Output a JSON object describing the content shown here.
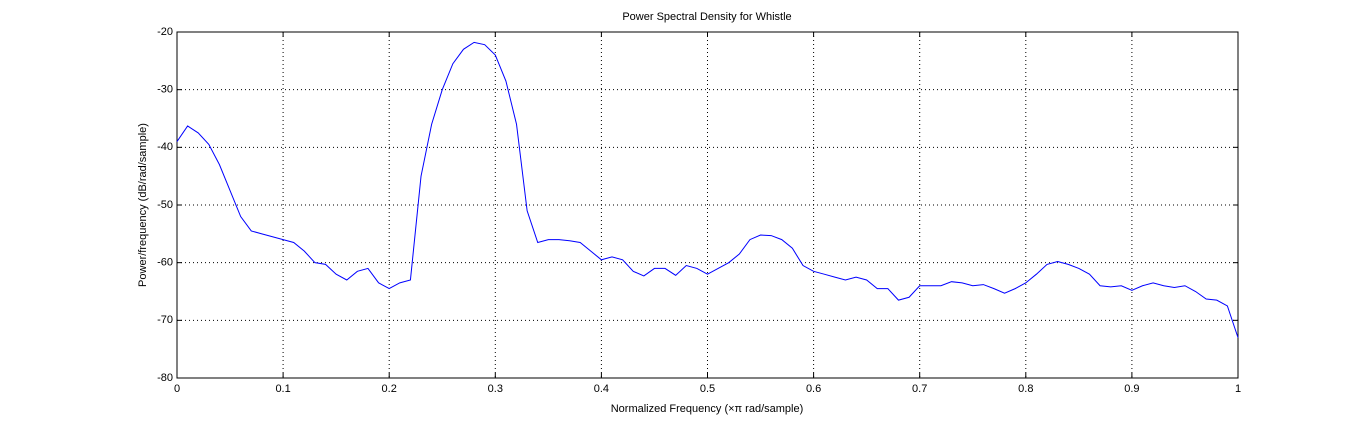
{
  "chart_data": {
    "type": "line",
    "title": "Power Spectral Density for Whistle",
    "xlabel": "Normalized Frequency  (×π rad/sample)",
    "ylabel": "Power/frequency (dB/rad/sample)",
    "x": [
      0,
      0.01,
      0.02,
      0.03,
      0.04,
      0.05,
      0.06,
      0.07,
      0.08,
      0.09,
      0.1,
      0.11,
      0.12,
      0.13,
      0.14,
      0.15,
      0.16,
      0.17,
      0.18,
      0.19,
      0.2,
      0.21,
      0.22,
      0.23,
      0.24,
      0.25,
      0.26,
      0.27,
      0.28,
      0.29,
      0.3,
      0.31,
      0.32,
      0.33,
      0.34,
      0.35,
      0.36,
      0.37,
      0.38,
      0.39,
      0.4,
      0.41,
      0.42,
      0.43,
      0.44,
      0.45,
      0.46,
      0.47,
      0.48,
      0.49,
      0.5,
      0.51,
      0.52,
      0.53,
      0.54,
      0.55,
      0.56,
      0.57,
      0.58,
      0.59,
      0.6,
      0.61,
      0.62,
      0.63,
      0.64,
      0.65,
      0.66,
      0.67,
      0.68,
      0.69,
      0.7,
      0.71,
      0.72,
      0.73,
      0.74,
      0.75,
      0.76,
      0.77,
      0.78,
      0.79,
      0.8,
      0.81,
      0.82,
      0.83,
      0.84,
      0.85,
      0.86,
      0.87,
      0.88,
      0.89,
      0.9,
      0.91,
      0.92,
      0.93,
      0.94,
      0.95,
      0.96,
      0.97,
      0.98,
      0.99,
      1
    ],
    "values": [
      -39,
      -36.3,
      -37.5,
      -39.5,
      -43,
      -47.5,
      -52,
      -54.5,
      -55,
      -55.5,
      -56,
      -56.5,
      -58,
      -60,
      -60.3,
      -62,
      -63,
      -61.5,
      -61,
      -63.5,
      -64.5,
      -63.5,
      -63,
      -45,
      -36,
      -30,
      -25.5,
      -23,
      -21.8,
      -22.2,
      -24,
      -28.5,
      -36,
      -51,
      -56.5,
      -56,
      -56,
      -56.2,
      -56.5,
      -58,
      -59.5,
      -59,
      -59.5,
      -61.5,
      -62.3,
      -61,
      -61,
      -62.2,
      -60.5,
      -61,
      -62,
      -61,
      -60,
      -58.5,
      -56,
      -55.2,
      -55.3,
      -56,
      -57.5,
      -60.5,
      -61.5,
      -62,
      -62.5,
      -63,
      -62.5,
      -63,
      -64.5,
      -64.5,
      -66.5,
      -66,
      -64,
      -64,
      -64,
      -63.3,
      -63.5,
      -64,
      -63.8,
      -64.5,
      -65.3,
      -64.5,
      -63.5,
      -62,
      -60.3,
      -59.8,
      -60.3,
      -61,
      -62,
      -64,
      -64.2,
      -64,
      -64.8,
      -64,
      -63.5,
      -64,
      -64.3,
      -64,
      -65,
      -66.3,
      -66.5,
      -67.5,
      -73
    ],
    "color": "#0000ff",
    "xlim": [
      0,
      1
    ],
    "xticks": [
      0,
      0.1,
      0.2,
      0.3,
      0.4,
      0.5,
      0.6,
      0.7,
      0.8,
      0.9,
      1
    ],
    "ylim": [
      -80,
      -20
    ],
    "yticks": [
      -80,
      -70,
      -60,
      -50,
      -40,
      -30,
      -20
    ],
    "grid": true
  }
}
